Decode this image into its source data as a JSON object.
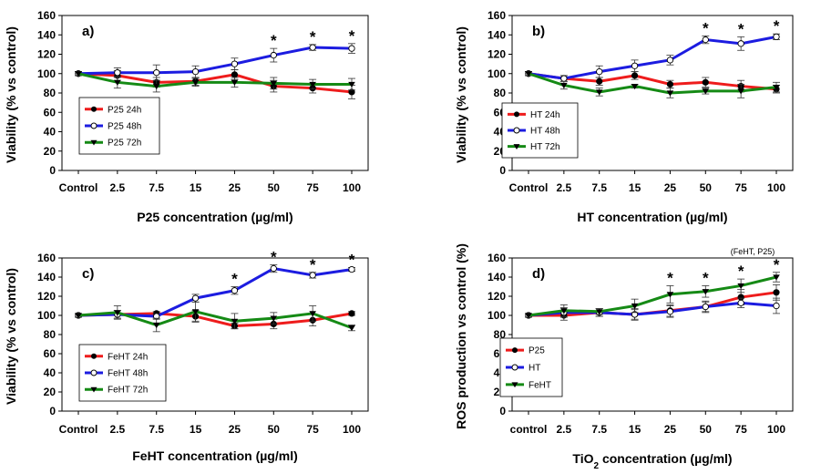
{
  "chart_data": [
    {
      "type": "line",
      "panel_label": "a)",
      "categories": [
        "Control",
        "2.5",
        "7.5",
        "15",
        "25",
        "50",
        "75",
        "100"
      ],
      "xlabel": "P25 concentration (µg/ml)",
      "xlabel_parts": [],
      "ylabel": "Viability (% vs control)",
      "ylim": [
        0,
        160
      ],
      "yticks": [
        0,
        20,
        40,
        60,
        80,
        100,
        120,
        140,
        160
      ],
      "series": [
        {
          "name": "P25 24h",
          "color": "#ee1c1c",
          "marker": "filled-circle",
          "values": [
            100,
            98,
            91,
            92,
            99,
            87,
            85,
            81
          ],
          "errors": [
            2,
            5,
            5,
            4,
            5,
            6,
            5,
            7
          ]
        },
        {
          "name": "P25 48h",
          "color": "#1c1ce0",
          "marker": "open-circle",
          "values": [
            100,
            101,
            101,
            102,
            110,
            119,
            127,
            126
          ],
          "errors": [
            2,
            5,
            8,
            6,
            6,
            7,
            3,
            5
          ]
        },
        {
          "name": "P25 72h",
          "color": "#158a15",
          "marker": "triangle-down",
          "values": [
            100,
            91,
            87,
            91,
            91,
            90,
            89,
            89
          ],
          "errors": [
            2,
            6,
            6,
            4,
            5,
            6,
            5,
            6
          ]
        }
      ],
      "significance": [
        "",
        "",
        "",
        "",
        "",
        "*",
        "*",
        "*"
      ],
      "annotation": "",
      "legend_position": "bottom-left"
    },
    {
      "type": "line",
      "panel_label": "b)",
      "categories": [
        "Control",
        "2.5",
        "7.5",
        "15",
        "25",
        "50",
        "75",
        "100"
      ],
      "xlabel": "HT concentration (µg/ml)",
      "xlabel_parts": [],
      "ylabel": "Viability (% vs control)",
      "ylim": [
        0,
        160
      ],
      "yticks": [
        0,
        20,
        40,
        60,
        80,
        100,
        120,
        140,
        160
      ],
      "series": [
        {
          "name": "HT 24h",
          "color": "#ee1c1c",
          "marker": "filled-circle",
          "values": [
            100,
            95,
            92,
            98,
            89,
            91,
            87,
            84
          ],
          "errors": [
            2,
            3,
            4,
            4,
            4,
            5,
            6,
            4
          ]
        },
        {
          "name": "HT 48h",
          "color": "#1c1ce0",
          "marker": "open-circle",
          "values": [
            100,
            95,
            102,
            108,
            114,
            135,
            131,
            138
          ],
          "errors": [
            2,
            3,
            6,
            6,
            5,
            4,
            7,
            3
          ]
        },
        {
          "name": "HT 72h",
          "color": "#158a15",
          "marker": "triangle-down",
          "values": [
            100,
            88,
            81,
            87,
            80,
            82,
            82,
            86
          ],
          "errors": [
            2,
            4,
            4,
            2,
            5,
            3,
            7,
            5
          ]
        }
      ],
      "significance": [
        "",
        "",
        "",
        "",
        "",
        "*",
        "*",
        "*"
      ],
      "annotation": "",
      "legend_position": "bottom-left"
    },
    {
      "type": "line",
      "panel_label": "c)",
      "categories": [
        "Control",
        "2.5",
        "7.5",
        "15",
        "25",
        "50",
        "75",
        "100"
      ],
      "xlabel": "FeHT concentration (µg/ml)",
      "xlabel_parts": [],
      "ylabel": "Viability (% vs control)",
      "ylim": [
        0,
        160
      ],
      "yticks": [
        0,
        20,
        40,
        60,
        80,
        100,
        120,
        140,
        160
      ],
      "series": [
        {
          "name": "FeHT 24h",
          "color": "#ee1c1c",
          "marker": "filled-circle",
          "values": [
            100,
            101,
            102,
            99,
            89,
            91,
            95,
            102
          ],
          "errors": [
            2,
            4,
            2,
            6,
            3,
            5,
            6,
            2
          ]
        },
        {
          "name": "FeHT 48h",
          "color": "#1c1ce0",
          "marker": "open-circle",
          "values": [
            100,
            101,
            99,
            118,
            126,
            149,
            142,
            148
          ],
          "errors": [
            2,
            4,
            3,
            4,
            4,
            4,
            3,
            2
          ]
        },
        {
          "name": "FeHT 72h",
          "color": "#158a15",
          "marker": "triangle-down",
          "values": [
            100,
            103,
            90,
            104,
            94,
            97,
            102,
            87
          ],
          "errors": [
            2,
            7,
            7,
            10,
            8,
            6,
            8,
            3
          ]
        }
      ],
      "significance": [
        "",
        "",
        "",
        "",
        "*",
        "*",
        "*",
        "*"
      ],
      "annotation": "",
      "legend_position": "bottom-left"
    },
    {
      "type": "line",
      "panel_label": "d)",
      "categories": [
        "control",
        "2.5",
        "7.5",
        "15",
        "25",
        "50",
        "75",
        "100"
      ],
      "xlabel": "",
      "xlabel_parts": [
        "TiO",
        "2",
        " concentration (µg/ml)"
      ],
      "ylabel": "ROS production vs control (%)",
      "ylim": [
        0,
        160
      ],
      "yticks": [
        0,
        20,
        40,
        60,
        80,
        100,
        120,
        140,
        160
      ],
      "series": [
        {
          "name": "P25",
          "color": "#ee1c1c",
          "marker": "filled-circle",
          "values": [
            100,
            100,
            103,
            101,
            105,
            109,
            119,
            124
          ],
          "errors": [
            2,
            5,
            4,
            5,
            6,
            5,
            8,
            8
          ]
        },
        {
          "name": "HT",
          "color": "#1c1ce0",
          "marker": "open-circle",
          "values": [
            100,
            103,
            103,
            101,
            104,
            109,
            113,
            110
          ],
          "errors": [
            2,
            5,
            4,
            6,
            6,
            6,
            5,
            8
          ]
        },
        {
          "name": "FeHT",
          "color": "#158a15",
          "marker": "triangle-down",
          "values": [
            100,
            105,
            104,
            110,
            122,
            125,
            131,
            140
          ],
          "errors": [
            2,
            6,
            3,
            7,
            9,
            6,
            7,
            5
          ]
        }
      ],
      "significance": [
        "",
        "",
        "",
        "",
        "*",
        "*",
        "*",
        "*"
      ],
      "annotation": "(FeHT, P25)",
      "legend_position": "bottom-left"
    }
  ]
}
